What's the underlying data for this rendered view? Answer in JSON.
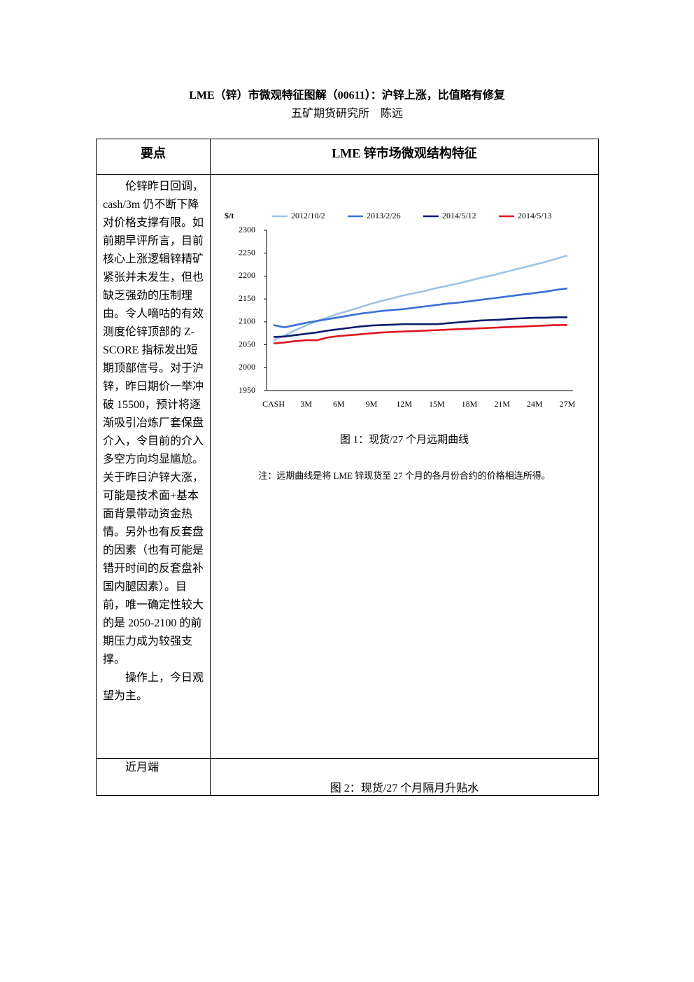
{
  "header": {
    "title": "LME（锌）市微观特征图解（00611）：沪锌上涨，比值略有修复",
    "subtitle": "五矿期货研究所　陈远"
  },
  "table": {
    "headers": [
      "要点",
      "LME 锌市场微观结构特征"
    ],
    "rows": [
      {
        "left": [
          "伦锌昨日回调，cash/3m 仍不断下降对价格支撑有限。如前期早评所言，目前核心上涨逻辑锌精矿紧张并未发生，但也缺乏强劲的压制理由。令人嘀咕的有效测度伦锌顶部的 Z-SCORE 指标发出短期顶部信号。对于沪锌，昨日期价一举冲破 15500，预计将逐渐吸引冶炼厂套保盘介入，令目前的介入多空方向均显尴尬。关于昨日沪锌大涨，可能是技术面+基本面背景带动资金热情。另外也有反套盘的因素（也有可能是错开时间的反套盘补国内腿因素）。目前，唯一确定性较大的是 2050-2100 的前期压力成为较强支撑。",
          "操作上，今日观望为主。"
        ],
        "caption": "图 1：现货/27 个月远期曲线",
        "note": "注：远期曲线是将 LME 锌现货至 27 个月的各月份合约的价格相连所得。"
      },
      {
        "left": [
          "近月端"
        ],
        "caption": "图 2：现货/27 个月隔月升贴水"
      }
    ]
  },
  "chart_data": {
    "type": "line",
    "y_label": "$/t",
    "legend": "top",
    "categories": [
      "CASH",
      null,
      null,
      "3M",
      null,
      null,
      "6M",
      null,
      null,
      "9M",
      null,
      null,
      "12M",
      null,
      null,
      "15M",
      null,
      null,
      "18M",
      null,
      null,
      "21M",
      null,
      null,
      "24M",
      null,
      null,
      "27M"
    ],
    "ylim": [
      1950,
      2300
    ],
    "yticks": [
      1950,
      2000,
      2050,
      2100,
      2150,
      2200,
      2250,
      2300
    ],
    "series": [
      {
        "name": "2012/10/2",
        "color": "#9dc3e6",
        "values": [
          2060,
          2070,
          2082,
          2092,
          2102,
          2110,
          2118,
          2125,
          2132,
          2140,
          2146,
          2152,
          2158,
          2163,
          2168,
          2174,
          2179,
          2184,
          2190,
          2196,
          2201,
          2207,
          2213,
          2219,
          2225,
          2231,
          2238,
          2245
        ]
      },
      {
        "name": "2013/2/26",
        "color": "#3a6fd8",
        "values": [
          2093,
          2088,
          2093,
          2098,
          2102,
          2106,
          2110,
          2114,
          2118,
          2121,
          2124,
          2126,
          2128,
          2131,
          2134,
          2137,
          2140,
          2142,
          2145,
          2148,
          2151,
          2154,
          2157,
          2160,
          2163,
          2166,
          2170,
          2173
        ]
      },
      {
        "name": "2014/5/12",
        "color": "#0a1a6e",
        "values": [
          2067,
          2068,
          2071,
          2074,
          2077,
          2081,
          2084,
          2087,
          2090,
          2092,
          2093,
          2094,
          2095,
          2095,
          2095,
          2095,
          2097,
          2099,
          2101,
          2103,
          2104,
          2105,
          2107,
          2108,
          2109,
          2109,
          2110,
          2110
        ]
      },
      {
        "name": "2014/5/13",
        "color": "#e0141e",
        "values": [
          2053,
          2055,
          2058,
          2060,
          2060,
          2066,
          2069,
          2071,
          2073,
          2075,
          2077,
          2078,
          2079,
          2080,
          2081,
          2082,
          2083,
          2084,
          2085,
          2086,
          2087,
          2088,
          2089,
          2090,
          2091,
          2092,
          2093,
          2093
        ]
      }
    ]
  }
}
